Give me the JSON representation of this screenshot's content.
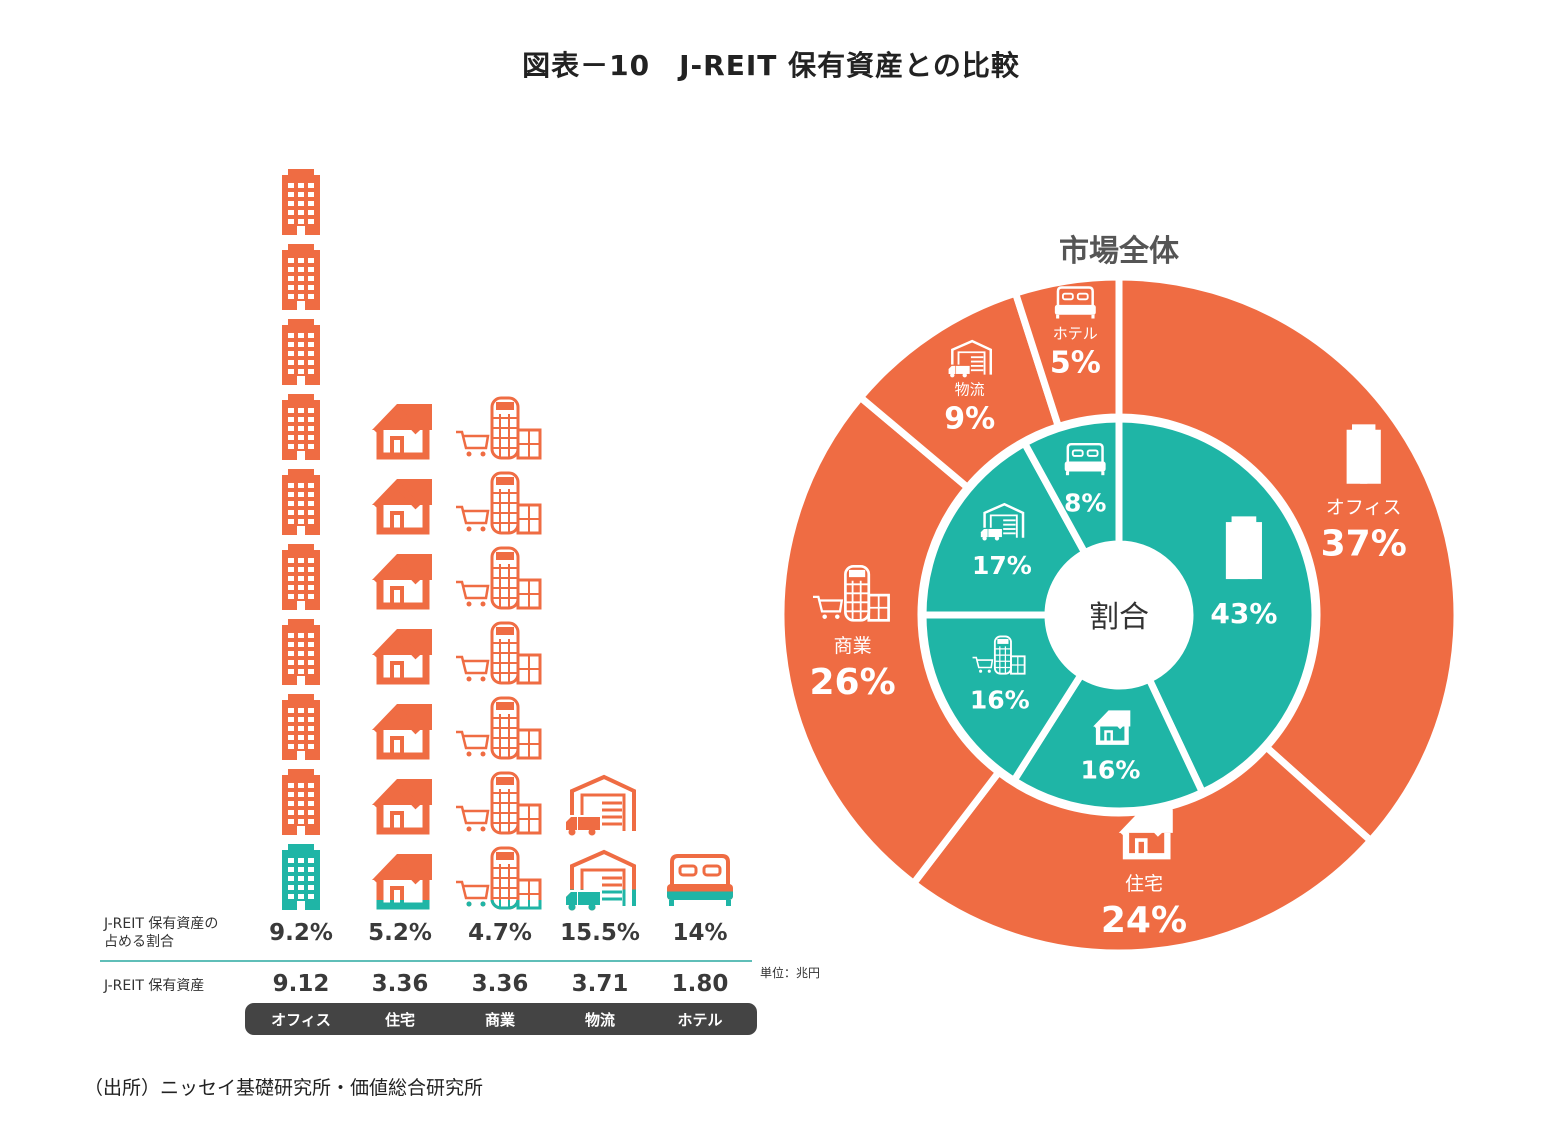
{
  "title": "図表－10　J-REIT 保有資産との比較",
  "source": "（出所）ニッセイ基礎研究所・価値総合研究所",
  "colors": {
    "market": "#EF6C43",
    "jreit": "#1FB5A6",
    "label_bar": "#444444"
  },
  "chart_data": [
    {
      "type": "table",
      "categories": [
        "オフィス",
        "住宅",
        "商業",
        "物流",
        "ホテル"
      ],
      "icons": [
        "office-building-icon",
        "house-icon",
        "mall-icon",
        "logistics-warehouse-icon",
        "hotel-bed-icon"
      ],
      "icon_counts": [
        10,
        7,
        7,
        2,
        1
      ],
      "jreit_share": {
        "label": "J-REIT 保有資産の\n占める割合",
        "values": [
          "9.2%",
          "5.2%",
          "4.7%",
          "15.5%",
          "14%"
        ]
      },
      "jreit_assets": {
        "label": "J-REIT 保有資産",
        "values": [
          "9.12",
          "3.36",
          "3.36",
          "3.71",
          "1.80"
        ]
      },
      "unit": "単位：兆円"
    },
    {
      "type": "pie",
      "title": "市場全体",
      "center_label": "割合",
      "outer": [
        {
          "name": "オフィス",
          "value": 37,
          "label": "37%"
        },
        {
          "name": "住宅",
          "value": 24,
          "label": "24%"
        },
        {
          "name": "商業",
          "value": 26,
          "label": "26%"
        },
        {
          "name": "物流",
          "value": 9,
          "label": "9%"
        },
        {
          "name": "ホテル",
          "value": 5,
          "label": "5%"
        }
      ],
      "inner": [
        {
          "name": "オフィス",
          "value": 43,
          "label": "43%"
        },
        {
          "name": "住宅",
          "value": 16,
          "label": "16%"
        },
        {
          "name": "商業",
          "value": 16,
          "label": "16%"
        },
        {
          "name": "物流",
          "value": 17,
          "label": "17%"
        },
        {
          "name": "ホテル",
          "value": 8,
          "label": "8%"
        }
      ]
    }
  ]
}
